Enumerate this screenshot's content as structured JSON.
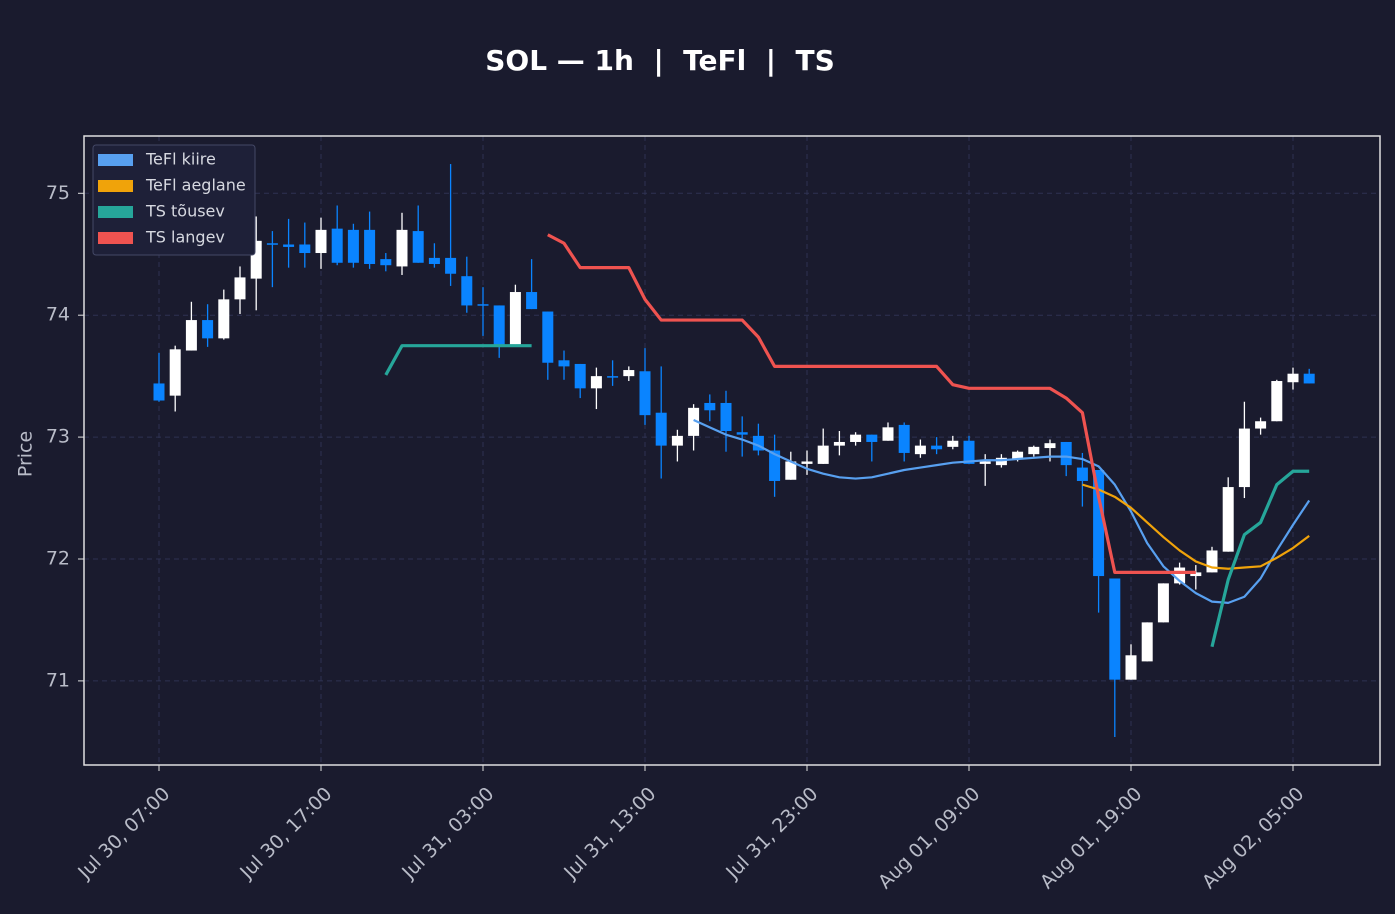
{
  "chart_data": {
    "type": "candlestick",
    "title": "SOL — 1h  |  TeFl  |  TS",
    "y_label": "Price",
    "categories": [
      "Jul 30, 07:00",
      null,
      null,
      null,
      null,
      null,
      null,
      null,
      null,
      null,
      "Jul 30, 17:00",
      null,
      null,
      null,
      null,
      null,
      null,
      null,
      null,
      null,
      "Jul 31, 03:00",
      null,
      null,
      null,
      null,
      null,
      null,
      null,
      null,
      null,
      "Jul 31, 13:00",
      null,
      null,
      null,
      null,
      null,
      null,
      null,
      null,
      null,
      "Jul 31, 23:00",
      null,
      null,
      null,
      null,
      null,
      null,
      null,
      null,
      null,
      "Aug 01, 09:00",
      null,
      null,
      null,
      null,
      null,
      null,
      null,
      null,
      null,
      "Aug 01, 19:00",
      null,
      null,
      null,
      null,
      null,
      null,
      null,
      null,
      null,
      "Aug 02, 05:00",
      null
    ],
    "open": [
      73.44,
      73.34,
      73.71,
      73.96,
      73.81,
      74.13,
      74.3,
      74.59,
      74.58,
      74.58,
      74.51,
      74.71,
      74.7,
      74.7,
      74.46,
      74.4,
      74.69,
      74.47,
      74.47,
      74.32,
      74.09,
      74.08,
      73.76,
      74.19,
      74.03,
      73.63,
      73.6,
      73.4,
      73.5,
      73.5,
      73.54,
      73.2,
      72.93,
      73.01,
      73.28,
      73.28,
      73.04,
      73.01,
      72.89,
      72.65,
      72.78,
      72.78,
      72.93,
      72.96,
      73.02,
      72.97,
      73.1,
      72.86,
      72.93,
      72.92,
      72.97,
      72.78,
      72.77,
      72.82,
      72.86,
      72.91,
      72.96,
      72.75,
      72.73,
      71.84,
      71.01,
      71.16,
      71.48,
      71.8,
      71.86,
      71.89,
      72.06,
      72.59,
      73.07,
      73.13,
      73.45,
      73.52
    ],
    "high": [
      73.69,
      73.75,
      74.11,
      74.09,
      74.21,
      74.4,
      74.81,
      74.69,
      74.79,
      74.76,
      74.8,
      74.9,
      74.75,
      74.85,
      74.51,
      74.84,
      74.9,
      74.59,
      75.24,
      74.48,
      74.23,
      74.08,
      74.25,
      74.46,
      74.03,
      73.71,
      73.6,
      73.57,
      73.63,
      73.58,
      73.73,
      73.58,
      73.06,
      73.27,
      73.35,
      73.38,
      73.17,
      73.11,
      73.02,
      72.88,
      72.89,
      73.07,
      73.05,
      73.04,
      73.02,
      73.12,
      73.12,
      72.98,
      73.0,
      73.01,
      73.01,
      72.86,
      72.86,
      72.89,
      72.93,
      72.98,
      72.96,
      72.87,
      72.73,
      71.84,
      71.3,
      71.48,
      71.8,
      71.97,
      71.95,
      72.1,
      72.67,
      73.29,
      73.16,
      73.47,
      73.57,
      73.56
    ],
    "low": [
      73.29,
      73.21,
      73.71,
      73.74,
      73.8,
      74.01,
      74.04,
      74.23,
      74.39,
      74.39,
      74.38,
      74.41,
      74.39,
      74.38,
      74.36,
      74.33,
      74.43,
      74.39,
      74.24,
      74.02,
      73.83,
      73.65,
      73.75,
      74.05,
      73.47,
      73.47,
      73.32,
      73.23,
      73.42,
      73.46,
      73.1,
      72.66,
      72.8,
      72.89,
      73.13,
      72.88,
      72.84,
      72.85,
      72.51,
      72.65,
      72.69,
      72.78,
      72.85,
      72.93,
      72.8,
      72.97,
      72.8,
      72.83,
      72.86,
      72.9,
      72.78,
      72.6,
      72.75,
      72.8,
      72.84,
      72.8,
      72.68,
      72.43,
      71.56,
      70.54,
      71.01,
      71.16,
      71.48,
      71.79,
      71.75,
      71.89,
      72.06,
      72.5,
      73.02,
      73.13,
      73.39,
      73.44
    ],
    "close": [
      73.3,
      73.72,
      73.96,
      73.81,
      74.13,
      74.31,
      74.61,
      74.58,
      74.56,
      74.51,
      74.7,
      74.43,
      74.43,
      74.42,
      74.41,
      74.7,
      74.43,
      74.42,
      74.34,
      74.08,
      74.08,
      73.75,
      74.19,
      74.05,
      73.61,
      73.58,
      73.4,
      73.5,
      73.49,
      73.55,
      73.18,
      72.93,
      73.01,
      73.24,
      73.22,
      73.05,
      73.02,
      72.89,
      72.64,
      72.8,
      72.8,
      72.93,
      72.96,
      73.02,
      72.96,
      73.08,
      72.87,
      72.93,
      72.9,
      72.97,
      72.78,
      72.8,
      72.83,
      72.88,
      72.92,
      72.95,
      72.77,
      72.64,
      71.86,
      71.01,
      71.21,
      71.48,
      71.8,
      71.93,
      71.89,
      72.07,
      72.59,
      73.07,
      73.13,
      73.46,
      73.52,
      73.44
    ],
    "up_color": "#ffffff",
    "down_color": "#0a84ff",
    "series": [
      {
        "name": "TeFl kiire",
        "color": "#58a0f0",
        "values": [
          null,
          null,
          null,
          null,
          null,
          null,
          null,
          null,
          null,
          null,
          null,
          null,
          null,
          null,
          null,
          null,
          null,
          null,
          null,
          null,
          null,
          null,
          null,
          null,
          null,
          null,
          null,
          null,
          null,
          null,
          null,
          null,
          null,
          73.14,
          73.08,
          73.02,
          72.98,
          72.93,
          72.86,
          72.8,
          72.74,
          72.7,
          72.67,
          72.66,
          72.67,
          72.7,
          72.73,
          72.75,
          72.77,
          72.79,
          72.8,
          72.81,
          72.81,
          72.82,
          72.83,
          72.84,
          72.84,
          72.82,
          72.76,
          72.61,
          72.39,
          72.13,
          71.94,
          71.82,
          71.72,
          71.65,
          71.64,
          71.69,
          71.84,
          72.07,
          72.28,
          72.48
        ]
      },
      {
        "name": "TeFl aeglane",
        "color": "#f0a30a",
        "values": [
          null,
          null,
          null,
          null,
          null,
          null,
          null,
          null,
          null,
          null,
          null,
          null,
          null,
          null,
          null,
          null,
          null,
          null,
          null,
          null,
          null,
          null,
          null,
          null,
          null,
          null,
          null,
          null,
          null,
          null,
          null,
          null,
          null,
          null,
          null,
          null,
          null,
          null,
          null,
          null,
          null,
          null,
          null,
          null,
          null,
          null,
          null,
          null,
          null,
          null,
          null,
          null,
          null,
          null,
          null,
          null,
          null,
          72.61,
          72.57,
          72.51,
          72.42,
          72.3,
          72.18,
          72.07,
          71.98,
          71.93,
          71.92,
          71.93,
          71.94,
          72.01,
          72.09,
          72.19
        ]
      },
      {
        "name": "TS tõusev",
        "color": "#26a69a",
        "values": [
          null,
          null,
          null,
          null,
          null,
          null,
          null,
          null,
          null,
          null,
          null,
          null,
          null,
          null,
          73.51,
          73.75,
          73.75,
          73.75,
          73.75,
          73.75,
          73.75,
          73.75,
          73.75,
          73.75,
          null,
          null,
          null,
          null,
          null,
          null,
          null,
          null,
          null,
          null,
          null,
          null,
          null,
          null,
          null,
          null,
          null,
          null,
          null,
          null,
          null,
          null,
          null,
          null,
          null,
          null,
          null,
          null,
          null,
          null,
          null,
          null,
          null,
          null,
          null,
          null,
          null,
          null,
          null,
          null,
          null,
          71.28,
          71.83,
          72.2,
          72.3,
          72.61,
          72.72,
          72.72
        ]
      },
      {
        "name": "TS langev",
        "color": "#ef5350",
        "values": [
          null,
          null,
          null,
          null,
          null,
          null,
          null,
          null,
          null,
          null,
          null,
          null,
          null,
          null,
          null,
          null,
          null,
          null,
          null,
          null,
          null,
          null,
          null,
          null,
          74.66,
          74.59,
          74.39,
          74.39,
          74.39,
          74.39,
          74.13,
          73.96,
          73.96,
          73.96,
          73.96,
          73.96,
          73.96,
          73.82,
          73.58,
          73.58,
          73.58,
          73.58,
          73.58,
          73.58,
          73.58,
          73.58,
          73.58,
          73.58,
          73.58,
          73.43,
          73.4,
          73.4,
          73.4,
          73.4,
          73.4,
          73.4,
          73.32,
          73.2,
          72.51,
          71.89,
          71.89,
          71.89,
          71.89,
          71.89,
          71.89,
          null,
          null,
          null,
          null,
          null,
          null,
          null
        ]
      }
    ],
    "ylim": [
      70.31,
      75.47
    ],
    "yticks": [
      71,
      72,
      73,
      74,
      75
    ],
    "grid": true,
    "legend": "upper left"
  }
}
